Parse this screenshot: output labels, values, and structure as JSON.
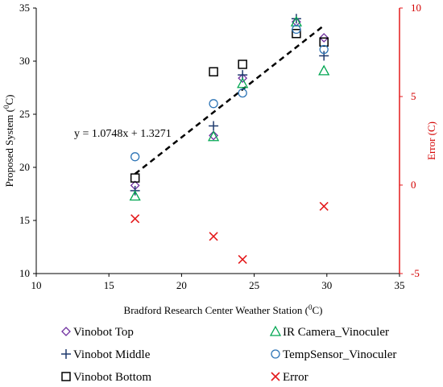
{
  "chart_data": {
    "type": "scatter",
    "xlabel": "Bradford Research Center Weather Station (",
    "xlabel_sup": "0",
    "xlabel_end": "C)",
    "ylabel": "Proposed System (",
    "ylabel_sup": "0",
    "ylabel_end": "C)",
    "y2label": "Error (C)",
    "xlim": [
      10,
      35
    ],
    "ylim": [
      10,
      35
    ],
    "y2lim": [
      -5,
      10
    ],
    "xticks": [
      "10",
      "15",
      "20",
      "25",
      "30",
      "35"
    ],
    "yticks": [
      "10",
      "15",
      "20",
      "25",
      "30",
      "35"
    ],
    "y2ticks": [
      "-5",
      "0",
      "5",
      "10"
    ],
    "grid": false,
    "legend_position": "bottom",
    "trendline": {
      "label": "y = 1.0748x + 1.3271",
      "slope": 1.0748,
      "intercept": 1.3271,
      "x_range": [
        16.8,
        29.8
      ]
    },
    "series": [
      {
        "name": "Vinobot Top",
        "axis": "left",
        "marker": "diamond",
        "color": "#7030a0",
        "x": [
          16.8,
          22.2,
          24.2,
          27.9,
          29.8
        ],
        "y": [
          18.3,
          23.0,
          28.4,
          33.7,
          32.2
        ]
      },
      {
        "name": "Vinobot Middle",
        "axis": "left",
        "marker": "plus",
        "color": "#1f3a6e",
        "x": [
          16.8,
          22.2,
          24.2,
          27.9,
          29.8
        ],
        "y": [
          17.8,
          23.9,
          28.7,
          34.0,
          30.5
        ]
      },
      {
        "name": "Vinobot Bottom",
        "axis": "left",
        "marker": "square",
        "color": "#000000",
        "x": [
          16.8,
          22.2,
          24.2,
          27.9,
          29.8
        ],
        "y": [
          19.0,
          29.0,
          29.7,
          32.6,
          31.8
        ]
      },
      {
        "name": "IR Camera_Vinoculer",
        "axis": "left",
        "marker": "triangle",
        "color": "#00a651",
        "x": [
          16.8,
          22.2,
          24.2,
          27.9,
          29.8
        ],
        "y": [
          17.3,
          22.9,
          27.9,
          33.7,
          29.1
        ]
      },
      {
        "name": "TempSensor_Vinoculer",
        "axis": "left",
        "marker": "circle",
        "color": "#2e75b6",
        "x": [
          16.8,
          22.2,
          24.2,
          27.9,
          29.8
        ],
        "y": [
          21.0,
          26.0,
          27.0,
          33.0,
          31.1
        ]
      },
      {
        "name": "Error",
        "axis": "right",
        "marker": "x",
        "color": "#e41a1c",
        "x": [
          16.8,
          22.2,
          24.2,
          27.9,
          29.8
        ],
        "y": [
          -1.9,
          -2.9,
          -4.2,
          null,
          -1.2
        ]
      }
    ]
  }
}
